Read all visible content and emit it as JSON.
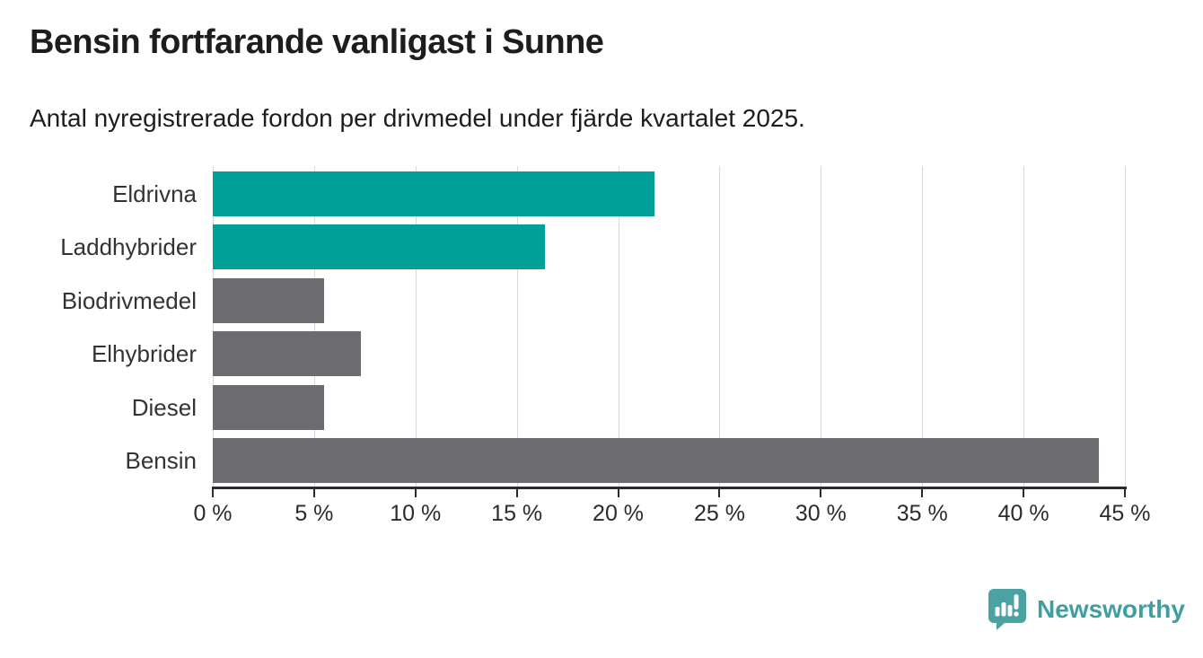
{
  "chart_data": {
    "type": "bar",
    "orientation": "horizontal",
    "title": "Bensin fortfarande vanligast i Sunne",
    "subtitle": "Antal nyregistrerade fordon per drivmedel under fjärde kvartalet 2025.",
    "categories": [
      "Eldrivna",
      "Laddhybrider",
      "Biodrivmedel",
      "Elhybrider",
      "Diesel",
      "Bensin"
    ],
    "values": [
      21.8,
      16.4,
      5.5,
      7.3,
      5.5,
      43.7
    ],
    "unit": "%",
    "xlabel": "",
    "ylabel": "",
    "xlim": [
      0,
      45
    ],
    "x_ticks": [
      0,
      5,
      10,
      15,
      20,
      25,
      30,
      35,
      40,
      45
    ],
    "x_tick_labels": [
      "0 %",
      "5 %",
      "10 %",
      "15 %",
      "20 %",
      "25 %",
      "30 %",
      "35 %",
      "40 %",
      "45 %"
    ],
    "bar_colors": [
      "#00a099",
      "#00a099",
      "#6b6b70",
      "#6b6b70",
      "#6b6b70",
      "#6b6b70"
    ],
    "highlight_color": "#00a099",
    "base_color": "#6b6b70",
    "gridline_color": "#d9d9d9",
    "axis_color": "#2b2b2b",
    "grid": true,
    "legend": null
  },
  "footer": {
    "brand": "Newsworthy",
    "brand_color": "#3f9fa0",
    "icon": "speech-bubble-bar-chart-icon",
    "icon_color": "#4aa3a2"
  }
}
